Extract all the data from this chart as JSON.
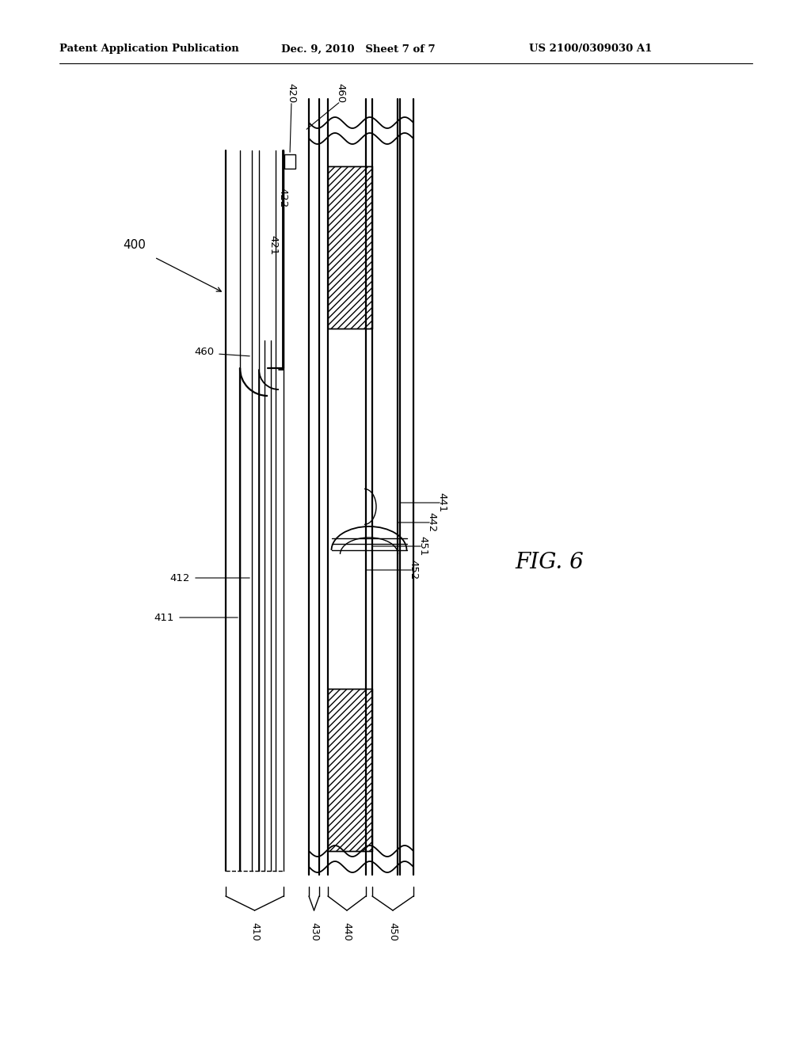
{
  "bg_color": "#ffffff",
  "line_color": "#000000",
  "header_left": "Patent Application Publication",
  "header_mid": "Dec. 9, 2010   Sheet 7 of 7",
  "header_right": "US 2100/0309030 A1",
  "fig_label": "FIG. 6",
  "ref_400": "400",
  "ref_410": "410",
  "ref_411": "411",
  "ref_412": "412",
  "ref_420": "420",
  "ref_421": "421",
  "ref_422": "422",
  "ref_430": "430",
  "ref_440": "440",
  "ref_441": "441",
  "ref_442": "442",
  "ref_450": "450",
  "ref_451": "451",
  "ref_452": "452",
  "ref_460a": "460",
  "ref_460b": "460",
  "lw_thin": 1.0,
  "lw_thick": 1.6,
  "lw_medium": 1.3
}
